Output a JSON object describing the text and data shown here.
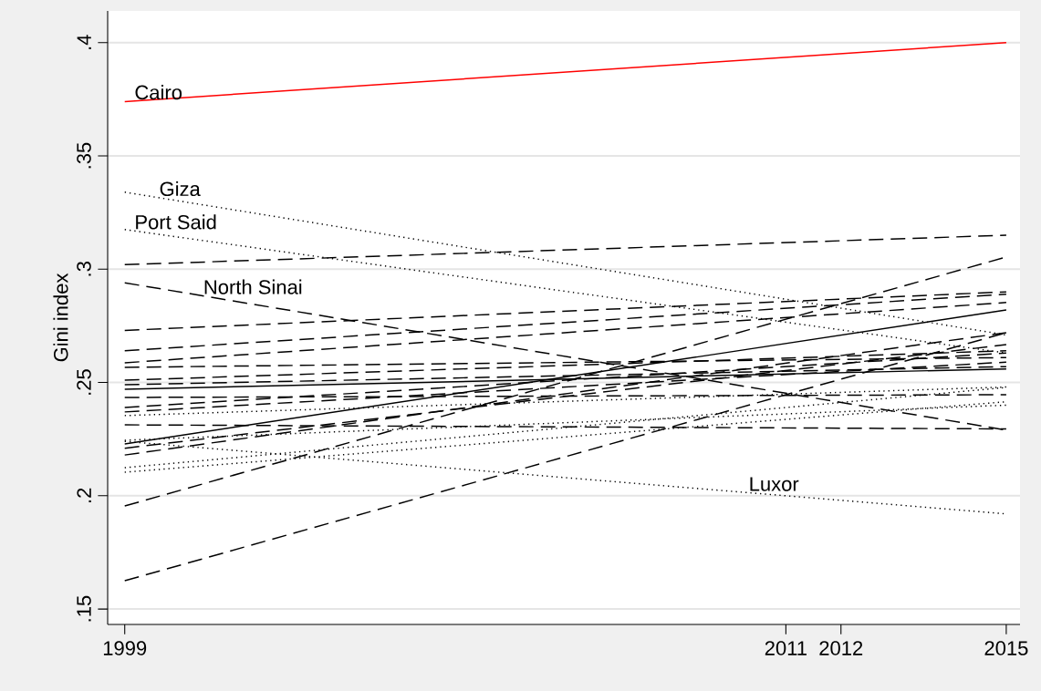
{
  "chart_data": {
    "type": "line",
    "ylabel": "Gini index",
    "x": [
      1999,
      2015
    ],
    "xlim": [
      1998.69,
      2015.25
    ],
    "ylim": [
      0.1432,
      0.414
    ],
    "xticks": [
      1999,
      2011,
      2012,
      2015
    ],
    "yticks": [
      {
        "value": 0.15,
        "label": ".15"
      },
      {
        "value": 0.2,
        "label": ".2"
      },
      {
        "value": 0.25,
        "label": ".25"
      },
      {
        "value": 0.3,
        "label": ".3"
      },
      {
        "value": 0.35,
        "label": ".35"
      },
      {
        "value": 0.4,
        "label": ".4"
      }
    ],
    "grid": "y",
    "legend": false,
    "marker": "none",
    "series": [
      {
        "name": "Cairo",
        "color": "#ff0000",
        "line_style": "solid",
        "values": [
          0.374,
          0.4
        ]
      },
      {
        "name": "Giza",
        "color": "#000000",
        "line_style": "dotted",
        "values": [
          0.334,
          0.271
        ]
      },
      {
        "name": "Port Said",
        "color": "#000000",
        "line_style": "dotted",
        "values": [
          0.3175,
          0.263
        ]
      },
      {
        "color": "#000000",
        "line_style": "dashed",
        "values": [
          0.302,
          0.315
        ]
      },
      {
        "name": "North Sinai",
        "color": "#000000",
        "line_style": "dashed",
        "values": [
          0.294,
          0.229
        ]
      },
      {
        "color": "#000000",
        "line_style": "dashed",
        "values": [
          0.273,
          0.29
        ]
      },
      {
        "color": "#000000",
        "line_style": "dashed",
        "values": [
          0.264,
          0.289
        ]
      },
      {
        "color": "#000000",
        "line_style": "dashed",
        "values": [
          0.2587,
          0.2853
        ]
      },
      {
        "color": "#000000",
        "line_style": "dashed",
        "values": [
          0.2567,
          0.261
        ]
      },
      {
        "color": "#000000",
        "line_style": "dashed",
        "values": [
          0.251,
          0.264
        ]
      },
      {
        "color": "#000000",
        "line_style": "dashed",
        "values": [
          0.249,
          0.257
        ]
      },
      {
        "color": "#000000",
        "line_style": "solid",
        "values": [
          0.247,
          0.256
        ]
      },
      {
        "color": "#000000",
        "line_style": "dashed",
        "values": [
          0.2434,
          0.2446
        ]
      },
      {
        "color": "#000000",
        "line_style": "dashed",
        "values": [
          0.239,
          0.263
        ]
      },
      {
        "color": "#000000",
        "line_style": "dashed",
        "values": [
          0.237,
          0.259
        ]
      },
      {
        "color": "#000000",
        "line_style": "dotted",
        "values": [
          0.2354,
          0.248
        ]
      },
      {
        "color": "#000000",
        "line_style": "dashed",
        "values": [
          0.2313,
          0.2295
        ]
      },
      {
        "color": "#000000",
        "line_style": "dotted",
        "values": [
          0.2245,
          0.24
        ]
      },
      {
        "color": "#000000",
        "line_style": "solid",
        "values": [
          0.2229,
          0.282
        ]
      },
      {
        "color": "#000000",
        "line_style": "dashed",
        "values": [
          0.221,
          0.2667
        ]
      },
      {
        "color": "#000000",
        "line_style": "dashed",
        "values": [
          0.218,
          0.272
        ]
      },
      {
        "color": "#000000",
        "line_style": "dotted",
        "values": [
          0.2124,
          0.2478
        ]
      },
      {
        "color": "#000000",
        "line_style": "dotted",
        "values": [
          0.2104,
          0.2415
        ]
      },
      {
        "name": "Luxor",
        "color": "#000000",
        "line_style": "dotted",
        "values": [
          0.224,
          0.192
        ]
      },
      {
        "color": "#000000",
        "line_style": "dashed",
        "values": [
          0.1955,
          0.3054
        ]
      },
      {
        "color": "#000000",
        "line_style": "dashed",
        "values": [
          0.1625,
          0.272
        ]
      }
    ]
  }
}
